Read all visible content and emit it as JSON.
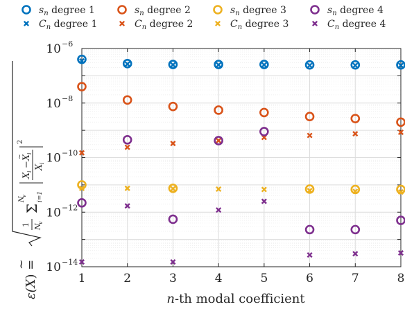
{
  "chart_data": {
    "type": "scatter",
    "xlabel": "n-th modal coefficient",
    "ylabel": "ε(X̃) = sqrt( (1/N_v) Σ_{i=1}^{N_v} |(X_i − X̃_i)/X_i|^2 )",
    "x": [
      1,
      2,
      3,
      4,
      5,
      6,
      7,
      8
    ],
    "x_tick_labels": [
      "1",
      "2",
      "3",
      "4",
      "5",
      "6",
      "7",
      "8"
    ],
    "xlim": [
      1,
      8
    ],
    "yscale": "log",
    "ylim": [
      1e-14,
      1e-06
    ],
    "y_tick_labels": [
      {
        "base": "10",
        "exp": "−6"
      },
      {
        "base": "10",
        "exp": "−8"
      },
      {
        "base": "10",
        "exp": "−10"
      },
      {
        "base": "10",
        "exp": "−12"
      },
      {
        "base": "10",
        "exp": "−14"
      }
    ],
    "grid": true,
    "legend_position": "top",
    "series": [
      {
        "name": "s_n degree 1",
        "marker": "circle",
        "color": "#0072BD",
        "values": [
          4e-07,
          2.8e-07,
          2.6e-07,
          2.6e-07,
          2.6e-07,
          2.5e-07,
          2.5e-07,
          2.5e-07
        ]
      },
      {
        "name": "C_n degree 1",
        "marker": "x",
        "color": "#0072BD",
        "values": [
          3.5e-07,
          2.7e-07,
          2.5e-07,
          2.5e-07,
          2.5e-07,
          2.4e-07,
          2.4e-07,
          2.4e-07
        ]
      },
      {
        "name": "s_n degree 2",
        "marker": "circle",
        "color": "#D95319",
        "values": [
          4e-08,
          1.3e-08,
          7.5e-09,
          5.5e-09,
          4.5e-09,
          3.2e-09,
          2.7e-09,
          2e-09
        ]
      },
      {
        "name": "C_n degree 2",
        "marker": "x",
        "color": "#D95319",
        "values": [
          1.5e-10,
          2.4e-10,
          3.3e-10,
          4.2e-10,
          5.5e-10,
          6.5e-10,
          7.5e-10,
          8.5e-10
        ]
      },
      {
        "name": "s_n degree 3",
        "marker": "circle",
        "color": "#EDB120",
        "values": [
          1e-11,
          null,
          7.5e-12,
          null,
          null,
          7e-12,
          6.8e-12,
          6.8e-12
        ]
      },
      {
        "name": "C_n degree 3",
        "marker": "x",
        "color": "#EDB120",
        "values": [
          7.5e-12,
          7.5e-12,
          7.2e-12,
          7e-12,
          6.8e-12,
          6.2e-12,
          5.8e-12,
          5.5e-12
        ]
      },
      {
        "name": "s_n degree 4",
        "marker": "circle",
        "color": "#7E2F8E",
        "values": [
          2.2e-12,
          4.5e-10,
          5.5e-13,
          4.2e-10,
          9e-10,
          2.3e-13,
          2.3e-13,
          5e-13
        ]
      },
      {
        "name": "C_n degree 4",
        "marker": "x",
        "color": "#7E2F8E",
        "values": [
          1.5e-14,
          1.7e-12,
          1.5e-14,
          1.2e-12,
          2.5e-12,
          2.7e-14,
          3e-14,
          3.2e-14
        ]
      }
    ]
  },
  "legend": {
    "items": [
      {
        "sym": "s",
        "degree": "degree 1"
      },
      {
        "sym": "s",
        "degree": "degree 2"
      },
      {
        "sym": "s",
        "degree": "degree 3"
      },
      {
        "sym": "s",
        "degree": "degree 4"
      },
      {
        "sym": "C",
        "degree": "degree 1"
      },
      {
        "sym": "C",
        "degree": "degree 2"
      },
      {
        "sym": "C",
        "degree": "degree 3"
      },
      {
        "sym": "C",
        "degree": "degree 4"
      }
    ],
    "subscript": "n"
  },
  "labels": {
    "x_italic": "n",
    "x_rest": "-th modal coefficient",
    "y_eps": "ε(",
    "y_X": "X",
    "y_tilde": "~",
    "y_close": ") =",
    "y_frac_one": "1",
    "y_frac_N": "N",
    "y_frac_Nsub": "v",
    "y_sigma": "Σ",
    "y_sum_top": "N",
    "y_sum_top_sub": "v",
    "y_sum_bottom": "i=1",
    "y_num": "X",
    "y_num_sub": "i",
    "y_minus": "−",
    "y_den": "X",
    "y_den_sub": "i",
    "y_power": "2"
  }
}
